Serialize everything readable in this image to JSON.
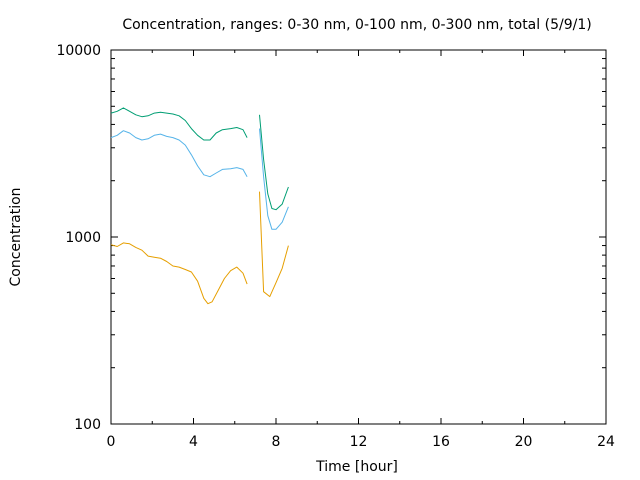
{
  "chart_data": {
    "type": "line",
    "title": "Concentration, ranges: 0-30 nm, 0-100 nm, 0-300 nm, total (5/9/1)",
    "xlabel": "Time [hour]",
    "ylabel": "Concentration",
    "xlim": [
      0,
      24
    ],
    "ylim": [
      100,
      10000
    ],
    "yscale": "log",
    "grid": false,
    "x_ticks": [
      "0",
      "4",
      "8",
      "12",
      "16",
      "20",
      "24"
    ],
    "y_ticks": [
      "100",
      "1000",
      "10000"
    ],
    "series": [
      {
        "color": "#e69f00",
        "segments": [
          [
            [
              0,
              910
            ],
            [
              0.3,
              890
            ],
            [
              0.6,
              930
            ],
            [
              0.9,
              920
            ],
            [
              1.2,
              880
            ],
            [
              1.5,
              850
            ],
            [
              1.8,
              790
            ],
            [
              2.1,
              780
            ],
            [
              2.4,
              770
            ],
            [
              2.7,
              740
            ],
            [
              3.0,
              700
            ],
            [
              3.3,
              690
            ],
            [
              3.6,
              670
            ],
            [
              3.9,
              650
            ],
            [
              4.2,
              580
            ],
            [
              4.5,
              470
            ],
            [
              4.7,
              440
            ],
            [
              4.9,
              450
            ],
            [
              5.2,
              520
            ],
            [
              5.5,
              600
            ],
            [
              5.8,
              660
            ],
            [
              6.1,
              690
            ],
            [
              6.4,
              640
            ],
            [
              6.6,
              560
            ]
          ],
          [
            [
              7.2,
              1750
            ],
            [
              7.4,
              510
            ],
            [
              7.7,
              480
            ],
            [
              8.0,
              570
            ],
            [
              8.3,
              680
            ],
            [
              8.6,
              900
            ]
          ]
        ]
      },
      {
        "color": "#56b4e9",
        "segments": [
          [
            [
              0,
              3400
            ],
            [
              0.3,
              3500
            ],
            [
              0.6,
              3700
            ],
            [
              0.9,
              3600
            ],
            [
              1.2,
              3400
            ],
            [
              1.5,
              3300
            ],
            [
              1.8,
              3350
            ],
            [
              2.1,
              3500
            ],
            [
              2.4,
              3550
            ],
            [
              2.7,
              3450
            ],
            [
              3.0,
              3400
            ],
            [
              3.3,
              3300
            ],
            [
              3.6,
              3100
            ],
            [
              3.9,
              2750
            ],
            [
              4.2,
              2400
            ],
            [
              4.5,
              2150
            ],
            [
              4.8,
              2100
            ],
            [
              5.1,
              2200
            ],
            [
              5.4,
              2300
            ],
            [
              5.8,
              2320
            ],
            [
              6.1,
              2350
            ],
            [
              6.4,
              2300
            ],
            [
              6.6,
              2100
            ]
          ],
          [
            [
              7.2,
              3800
            ],
            [
              7.4,
              2100
            ],
            [
              7.6,
              1300
            ],
            [
              7.8,
              1100
            ],
            [
              8.0,
              1100
            ],
            [
              8.3,
              1200
            ],
            [
              8.6,
              1450
            ]
          ]
        ]
      },
      {
        "color": "#009e73",
        "segments": [
          [
            [
              0,
              4600
            ],
            [
              0.3,
              4700
            ],
            [
              0.6,
              4900
            ],
            [
              0.9,
              4700
            ],
            [
              1.2,
              4500
            ],
            [
              1.5,
              4400
            ],
            [
              1.8,
              4450
            ],
            [
              2.1,
              4600
            ],
            [
              2.4,
              4650
            ],
            [
              2.7,
              4600
            ],
            [
              3.0,
              4550
            ],
            [
              3.3,
              4450
            ],
            [
              3.6,
              4200
            ],
            [
              3.9,
              3800
            ],
            [
              4.2,
              3500
            ],
            [
              4.5,
              3300
            ],
            [
              4.8,
              3300
            ],
            [
              5.1,
              3600
            ],
            [
              5.4,
              3750
            ],
            [
              5.8,
              3800
            ],
            [
              6.1,
              3850
            ],
            [
              6.4,
              3750
            ],
            [
              6.6,
              3400
            ]
          ],
          [
            [
              7.2,
              4500
            ],
            [
              7.4,
              2600
            ],
            [
              7.6,
              1700
            ],
            [
              7.8,
              1420
            ],
            [
              8.0,
              1400
            ],
            [
              8.3,
              1500
            ],
            [
              8.6,
              1850
            ]
          ]
        ]
      }
    ]
  }
}
